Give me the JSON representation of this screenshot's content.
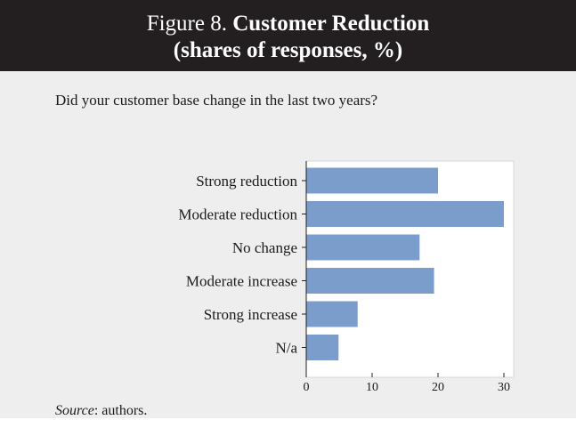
{
  "header": {
    "prefix": "Figure 8.",
    "title": "Customer Reduction",
    "subtitle": "(shares of responses, %)"
  },
  "question": "Did your customer base change in the last two years?",
  "source": {
    "label": "Source",
    "text": ": authors."
  },
  "colors": {
    "header_bg": "#231f20",
    "panel_bg": "#eeeeee",
    "plot_bg": "#ffffff",
    "bar": "#7b9dcc"
  },
  "chart_data": {
    "type": "bar",
    "orientation": "horizontal",
    "title": "Customer Reduction",
    "subtitle": "(shares of responses, %)",
    "categories": [
      "Strong reduction",
      "Moderate reduction",
      "No change",
      "Moderate increase",
      "Strong increase",
      "N/a"
    ],
    "values": [
      20,
      30,
      17.2,
      19.4,
      7.8,
      4.9
    ],
    "xlim": [
      0,
      31
    ],
    "xticks": [
      0,
      10,
      20,
      30
    ],
    "xlabel": "",
    "ylabel": "",
    "grid": false,
    "legend": "none"
  }
}
